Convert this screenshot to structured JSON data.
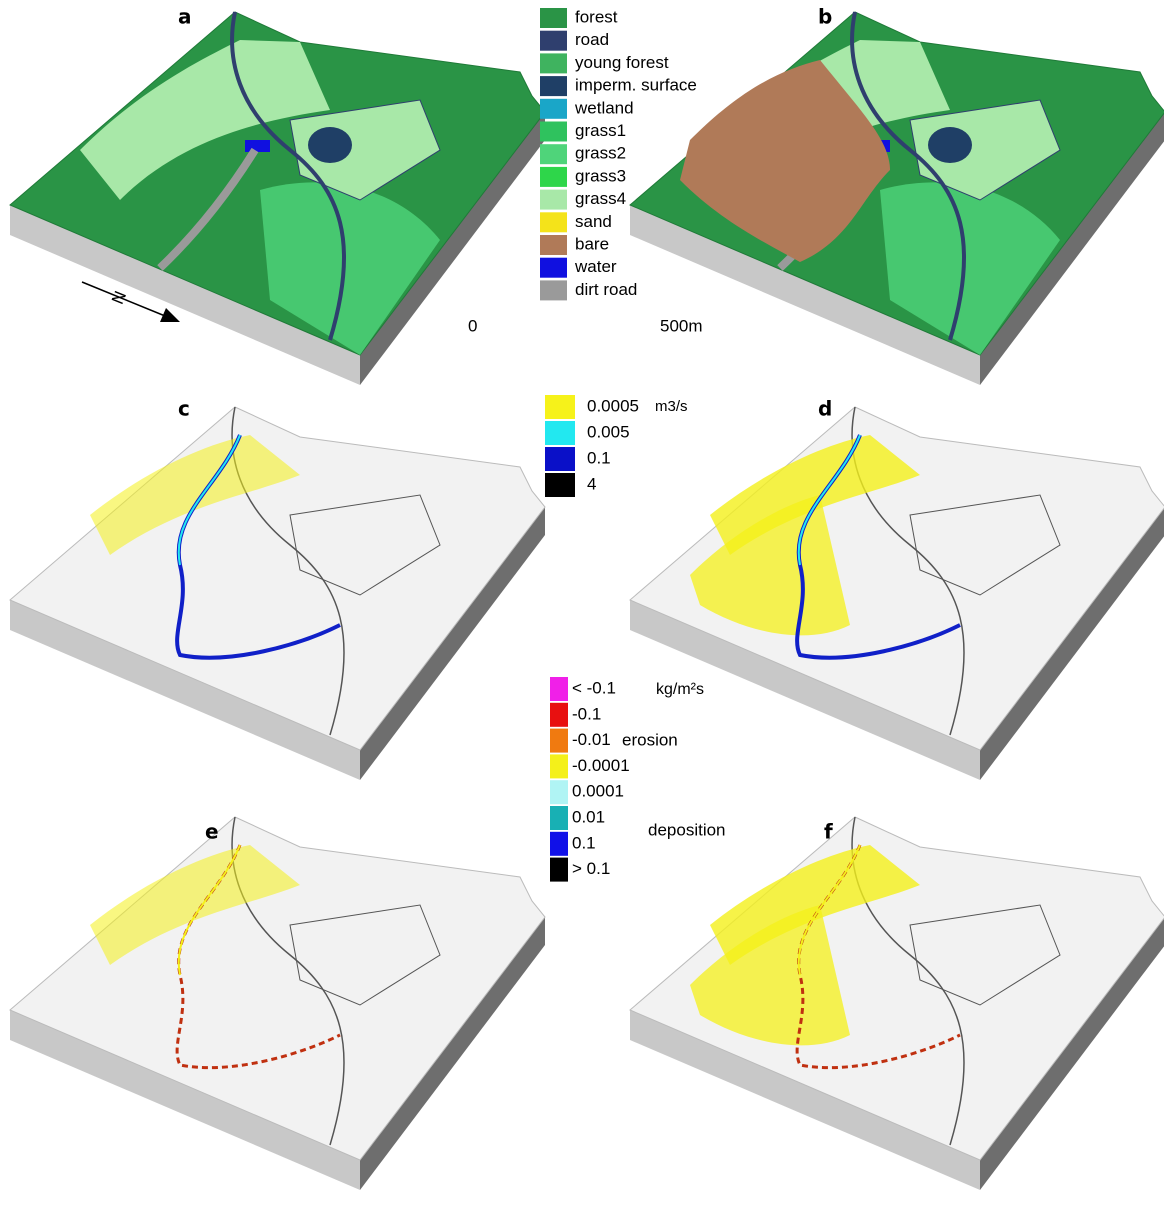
{
  "panels": [
    {
      "label": "a"
    },
    {
      "label": "b"
    },
    {
      "label": "c"
    },
    {
      "label": "d"
    },
    {
      "label": "e"
    },
    {
      "label": "f"
    }
  ],
  "north": "N",
  "land_use_legend": {
    "items": [
      {
        "label": "forest",
        "color": "#2a9446"
      },
      {
        "label": "road",
        "color": "#2f3f6e"
      },
      {
        "label": "young forest",
        "color": "#3fb35f"
      },
      {
        "label": "imperm. surface",
        "color": "#1f3f66"
      },
      {
        "label": "wetland",
        "color": "#1aa6c8"
      },
      {
        "label": "grass1",
        "color": "#2fc25e"
      },
      {
        "label": "grass2",
        "color": "#4fd47a"
      },
      {
        "label": "grass3",
        "color": "#2ed64a"
      },
      {
        "label": "grass4",
        "color": "#a8e8a8"
      },
      {
        "label": "sand",
        "color": "#f4e31a"
      },
      {
        "label": "bare",
        "color": "#b07a58"
      },
      {
        "label": "water",
        "color": "#1010e0"
      },
      {
        "label": "dirt road",
        "color": "#9a9a9a"
      }
    ]
  },
  "scale_bar": {
    "start": "0",
    "end": "500m"
  },
  "flow_legend": {
    "unit": "m3/s",
    "items": [
      {
        "label": "0.0005",
        "color": "#f6f21a"
      },
      {
        "label": "0.005",
        "color": "#22e8f0"
      },
      {
        "label": "0.1",
        "color": "#0a10c8"
      },
      {
        "label": "4",
        "color": "#000000"
      }
    ]
  },
  "sediment_legend": {
    "unit": "kg/m²s",
    "erosion_label": "erosion",
    "deposition_label": "deposition",
    "items": [
      {
        "label": "< -0.1",
        "color": "#f020e8"
      },
      {
        "label": "-0.1",
        "color": "#e81010"
      },
      {
        "label": "-0.01",
        "color": "#f07a10"
      },
      {
        "label": "-0.0001",
        "color": "#f4f01a"
      },
      {
        "label": "0.0001",
        "color": "#b0f4f4"
      },
      {
        "label": "0.01",
        "color": "#18b0b4"
      },
      {
        "label": "0.1",
        "color": "#1010e8"
      },
      {
        "label": "> 0.1",
        "color": "#000000"
      }
    ]
  }
}
